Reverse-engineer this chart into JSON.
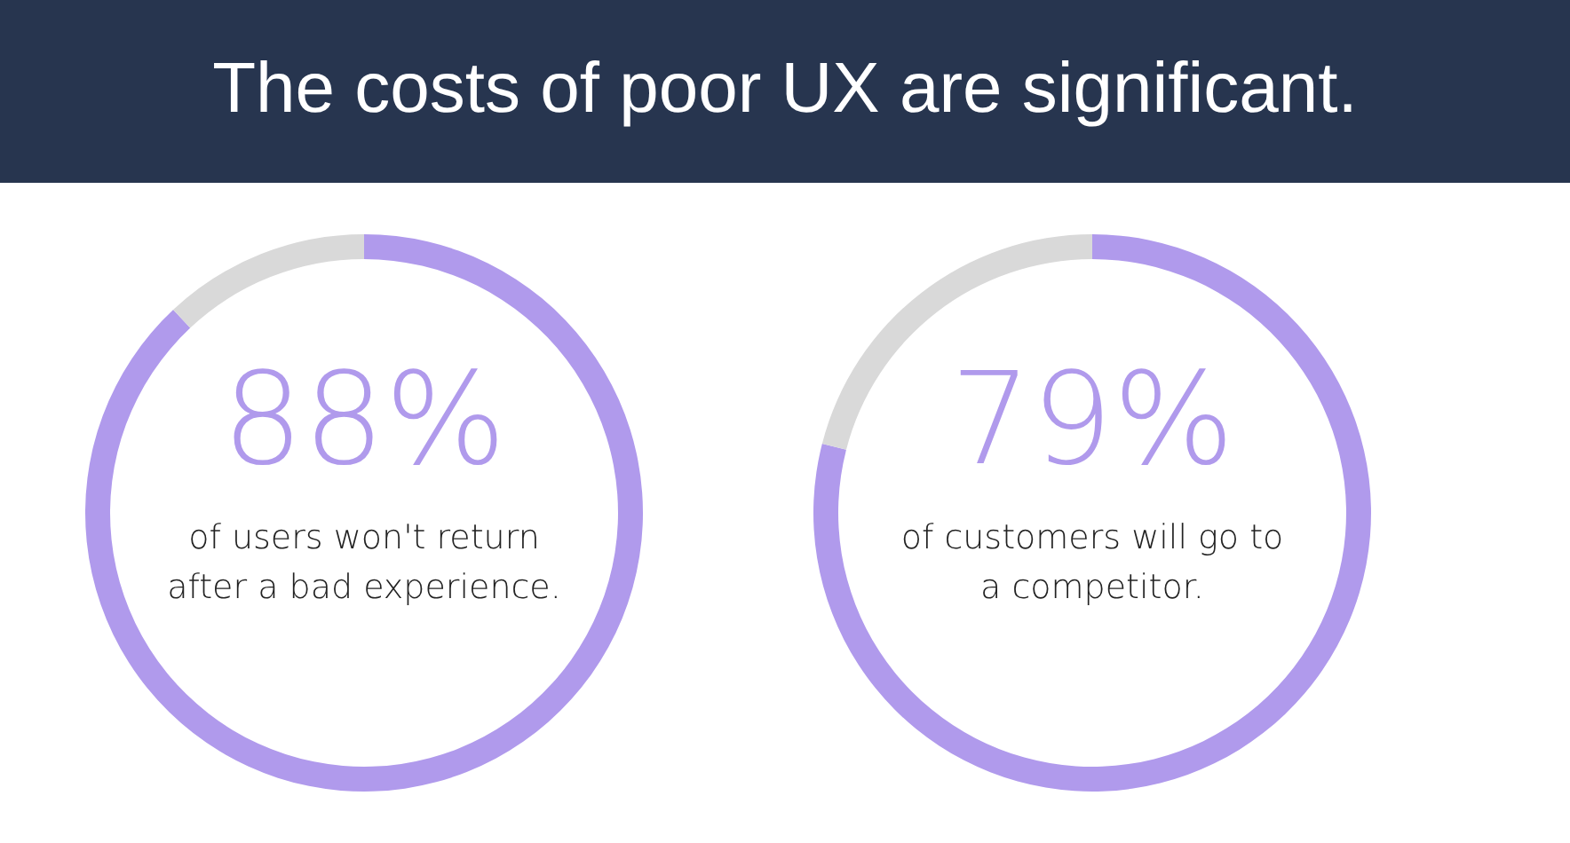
{
  "chart_data": [
    {
      "type": "donut",
      "title": "The costs of poor UX are significant.",
      "categories": [
        null,
        null
      ],
      "values": [
        88,
        12
      ],
      "colors": [
        "#b09aec",
        "#d9d9d9"
      ],
      "value_labels": [
        "88%",
        null
      ],
      "annotations": [
        "of users won't return after a bad experience."
      ]
    },
    {
      "type": "donut",
      "categories": [
        null,
        null
      ],
      "values": [
        79,
        21
      ],
      "colors": [
        "#b09aec",
        "#d9d9d9"
      ],
      "value_labels": [
        "79%",
        null
      ],
      "annotations": [
        "of customers will go to a competitor."
      ]
    }
  ]
}
